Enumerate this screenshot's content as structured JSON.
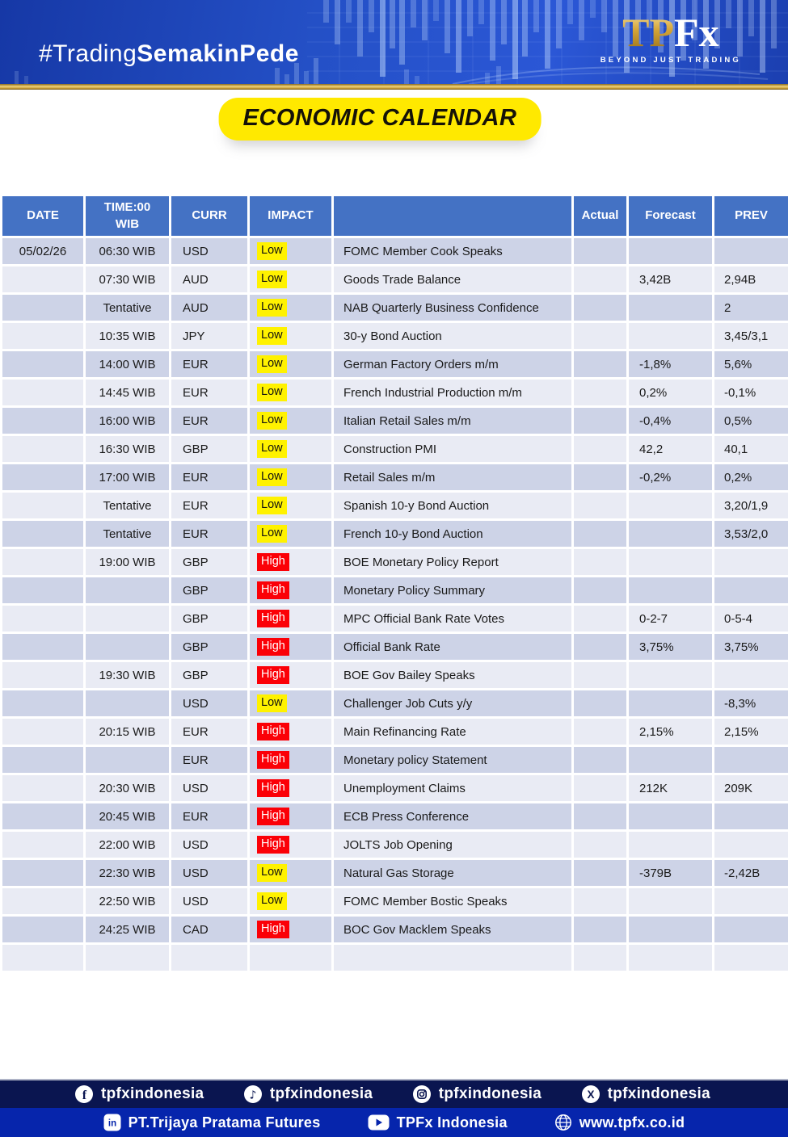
{
  "banner": {
    "hashtag_light": "#Trading",
    "hashtag_bold": "SemakinPede",
    "logo_tp": "TP",
    "logo_fx": "Fx",
    "logo_tagline": "BEYOND JUST TRADING"
  },
  "title": "ECONOMIC CALENDAR",
  "colors": {
    "header_blue": "#4472C4",
    "row_dark": "#CDD3E7",
    "row_light": "#E9EBF4",
    "impact_low_bg": "#FFF200",
    "impact_high_bg": "#FB0007",
    "title_bg": "#FFE900",
    "footer_navy": "#0A1550",
    "footer_blue": "#0625AC"
  },
  "table": {
    "headers": [
      "DATE",
      "TIME:00\nWIB",
      "CURR",
      "IMPACT",
      "",
      "Actual",
      "Forecast",
      "PREV"
    ],
    "rows": [
      {
        "date": "05/02/26",
        "time": "06:30 WIB",
        "curr": "USD",
        "impact": "Low",
        "event": "FOMC Member Cook Speaks",
        "actual": "",
        "forecast": "",
        "prev": ""
      },
      {
        "date": "",
        "time": "07:30 WIB",
        "curr": "AUD",
        "impact": "Low",
        "event": "Goods Trade Balance",
        "actual": "",
        "forecast": "3,42B",
        "prev": "2,94B"
      },
      {
        "date": "",
        "time": "Tentative",
        "curr": "AUD",
        "impact": "Low",
        "event": "NAB Quarterly Business Confidence",
        "actual": "",
        "forecast": "",
        "prev": "2"
      },
      {
        "date": "",
        "time": "10:35 WIB",
        "curr": "JPY",
        "impact": "Low",
        "event": "30-y Bond Auction",
        "actual": "",
        "forecast": "",
        "prev": "3,45/3,1"
      },
      {
        "date": "",
        "time": "14:00 WIB",
        "curr": "EUR",
        "impact": "Low",
        "event": "German Factory Orders m/m",
        "actual": "",
        "forecast": "-1,8%",
        "prev": "5,6%"
      },
      {
        "date": "",
        "time": "14:45 WIB",
        "curr": "EUR",
        "impact": "Low",
        "event": "French Industrial Production m/m",
        "actual": "",
        "forecast": "0,2%",
        "prev": "-0,1%"
      },
      {
        "date": "",
        "time": "16:00 WIB",
        "curr": "EUR",
        "impact": "Low",
        "event": "Italian Retail Sales m/m",
        "actual": "",
        "forecast": "-0,4%",
        "prev": "0,5%"
      },
      {
        "date": "",
        "time": "16:30 WIB",
        "curr": "GBP",
        "impact": "Low",
        "event": "Construction PMI",
        "actual": "",
        "forecast": "42,2",
        "prev": "40,1"
      },
      {
        "date": "",
        "time": "17:00 WIB",
        "curr": "EUR",
        "impact": "Low",
        "event": "Retail Sales m/m",
        "actual": "",
        "forecast": "-0,2%",
        "prev": "0,2%"
      },
      {
        "date": "",
        "time": "Tentative",
        "curr": "EUR",
        "impact": "Low",
        "event": "Spanish 10-y Bond Auction",
        "actual": "",
        "forecast": "",
        "prev": "3,20/1,9"
      },
      {
        "date": "",
        "time": "Tentative",
        "curr": "EUR",
        "impact": "Low",
        "event": "French 10-y Bond Auction",
        "actual": "",
        "forecast": "",
        "prev": "3,53/2,0"
      },
      {
        "date": "",
        "time": "19:00 WIB",
        "curr": "GBP",
        "impact": "High",
        "event": "BOE Monetary Policy Report",
        "actual": "",
        "forecast": "",
        "prev": ""
      },
      {
        "date": "",
        "time": "",
        "curr": "GBP",
        "impact": "High",
        "event": "Monetary Policy Summary",
        "actual": "",
        "forecast": "",
        "prev": ""
      },
      {
        "date": "",
        "time": "",
        "curr": "GBP",
        "impact": "High",
        "event": "MPC Official Bank Rate Votes",
        "actual": "",
        "forecast": "0-2-7",
        "prev": "0-5-4"
      },
      {
        "date": "",
        "time": "",
        "curr": "GBP",
        "impact": "High",
        "event": "Official Bank Rate",
        "actual": "",
        "forecast": "3,75%",
        "prev": "3,75%"
      },
      {
        "date": "",
        "time": "19:30 WIB",
        "curr": "GBP",
        "impact": "High",
        "event": "BOE Gov Bailey Speaks",
        "actual": "",
        "forecast": "",
        "prev": ""
      },
      {
        "date": "",
        "time": "",
        "curr": "USD",
        "impact": "Low",
        "event": "Challenger Job Cuts y/y",
        "actual": "",
        "forecast": "",
        "prev": "-8,3%"
      },
      {
        "date": "",
        "time": "20:15 WIB",
        "curr": "EUR",
        "impact": "High",
        "event": "Main Refinancing Rate",
        "actual": "",
        "forecast": "2,15%",
        "prev": "2,15%"
      },
      {
        "date": "",
        "time": "",
        "curr": "EUR",
        "impact": "High",
        "event": "Monetary policy Statement",
        "actual": "",
        "forecast": "",
        "prev": ""
      },
      {
        "date": "",
        "time": "20:30 WIB",
        "curr": "USD",
        "impact": "High",
        "event": "Unemployment Claims",
        "actual": "",
        "forecast": "212K",
        "prev": "209K"
      },
      {
        "date": "",
        "time": "20:45 WIB",
        "curr": "EUR",
        "impact": "High",
        "event": "ECB Press Conference",
        "actual": "",
        "forecast": "",
        "prev": ""
      },
      {
        "date": "",
        "time": "22:00 WIB",
        "curr": "USD",
        "impact": "High",
        "event": "JOLTS Job Opening",
        "actual": "",
        "forecast": "",
        "prev": ""
      },
      {
        "date": "",
        "time": "22:30 WIB",
        "curr": "USD",
        "impact": "Low",
        "event": "Natural Gas Storage",
        "actual": "",
        "forecast": "-379B",
        "prev": "-2,42B"
      },
      {
        "date": "",
        "time": "22:50 WIB",
        "curr": "USD",
        "impact": "Low",
        "event": "FOMC Member Bostic Speaks",
        "actual": "",
        "forecast": "",
        "prev": ""
      },
      {
        "date": "",
        "time": "24:25 WIB",
        "curr": "CAD",
        "impact": "High",
        "event": "BOC Gov Macklem Speaks",
        "actual": "",
        "forecast": "",
        "prev": ""
      },
      {
        "date": "",
        "time": "",
        "curr": "",
        "impact": "",
        "event": "",
        "actual": "",
        "forecast": "",
        "prev": ""
      }
    ]
  },
  "footer": {
    "social": [
      {
        "icon": "facebook-icon",
        "label": "tpfxindonesia"
      },
      {
        "icon": "tiktok-icon",
        "label": "tpfxindonesia"
      },
      {
        "icon": "instagram-icon",
        "label": "tpfxindonesia"
      },
      {
        "icon": "x-icon",
        "label": "tpfxindonesia"
      }
    ],
    "bottom": [
      {
        "icon": "linkedin-icon",
        "label": "PT.Trijaya Pratama Futures"
      },
      {
        "icon": "youtube-icon",
        "label": "TPFx Indonesia"
      },
      {
        "icon": "globe-icon",
        "label": "www.tpfx.co.id"
      }
    ]
  }
}
